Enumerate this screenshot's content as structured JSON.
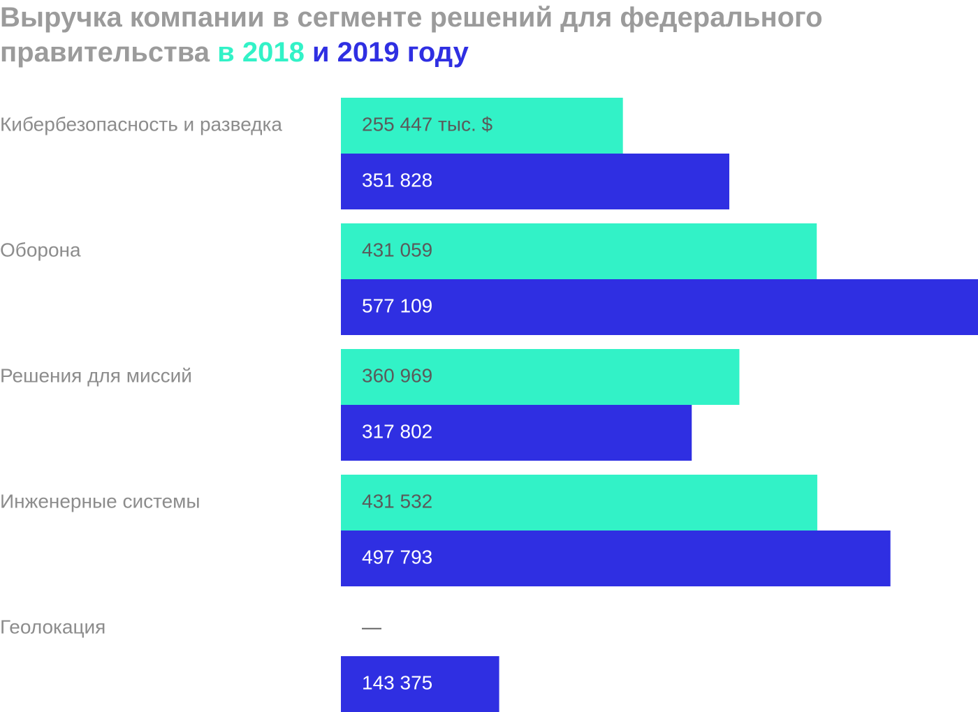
{
  "chart_data": {
    "type": "hbar",
    "title": "Выручка компании в сегменте решений для федерального правительства",
    "categories": [
      "Кибербезопасность и разведка",
      "Оборона",
      "Решения для миссий",
      "Инженерные системы",
      "Геолокация"
    ],
    "series": [
      {
        "name": "в 2018",
        "color": "#32f2c7",
        "label_color": "#5a5a5a",
        "values": [
          255447,
          431059,
          360969,
          431532,
          null
        ],
        "value_labels": [
          "255 447 тыс. $",
          "431 059",
          "360 969",
          "431 532",
          "—"
        ]
      },
      {
        "name": "и 2019 году",
        "color": "#2f2fe2",
        "label_color": "#ffffff",
        "values": [
          351828,
          577109,
          317802,
          497793,
          143375
        ],
        "value_labels": [
          "351 828",
          "577 109",
          "317 802",
          "497 793",
          "143 375"
        ]
      }
    ]
  }
}
